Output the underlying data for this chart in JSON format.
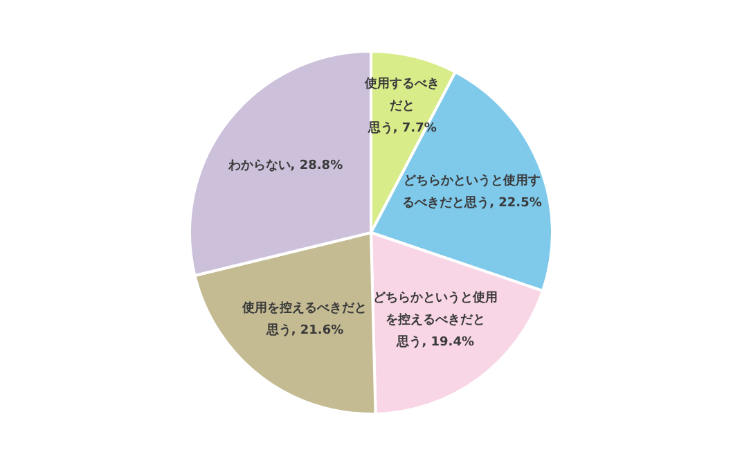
{
  "chart_data": {
    "type": "pie",
    "categories": [
      "使用するべきだと思う",
      "どちらかというと使用するべきだと思う",
      "どちらかというと使用を控えるべきだと思う",
      "使用を控えるべきだと思う",
      "わからない"
    ],
    "values": [
      7.7,
      22.5,
      19.4,
      21.6,
      28.8
    ],
    "value_labels": [
      "7.7%",
      "22.5%",
      "19.4%",
      "21.6%",
      "28.8%"
    ],
    "colors": [
      "#d9ec8a",
      "#7fc9eb",
      "#f9d6e6",
      "#c4bb93",
      "#ccc0da"
    ],
    "legend": false
  }
}
